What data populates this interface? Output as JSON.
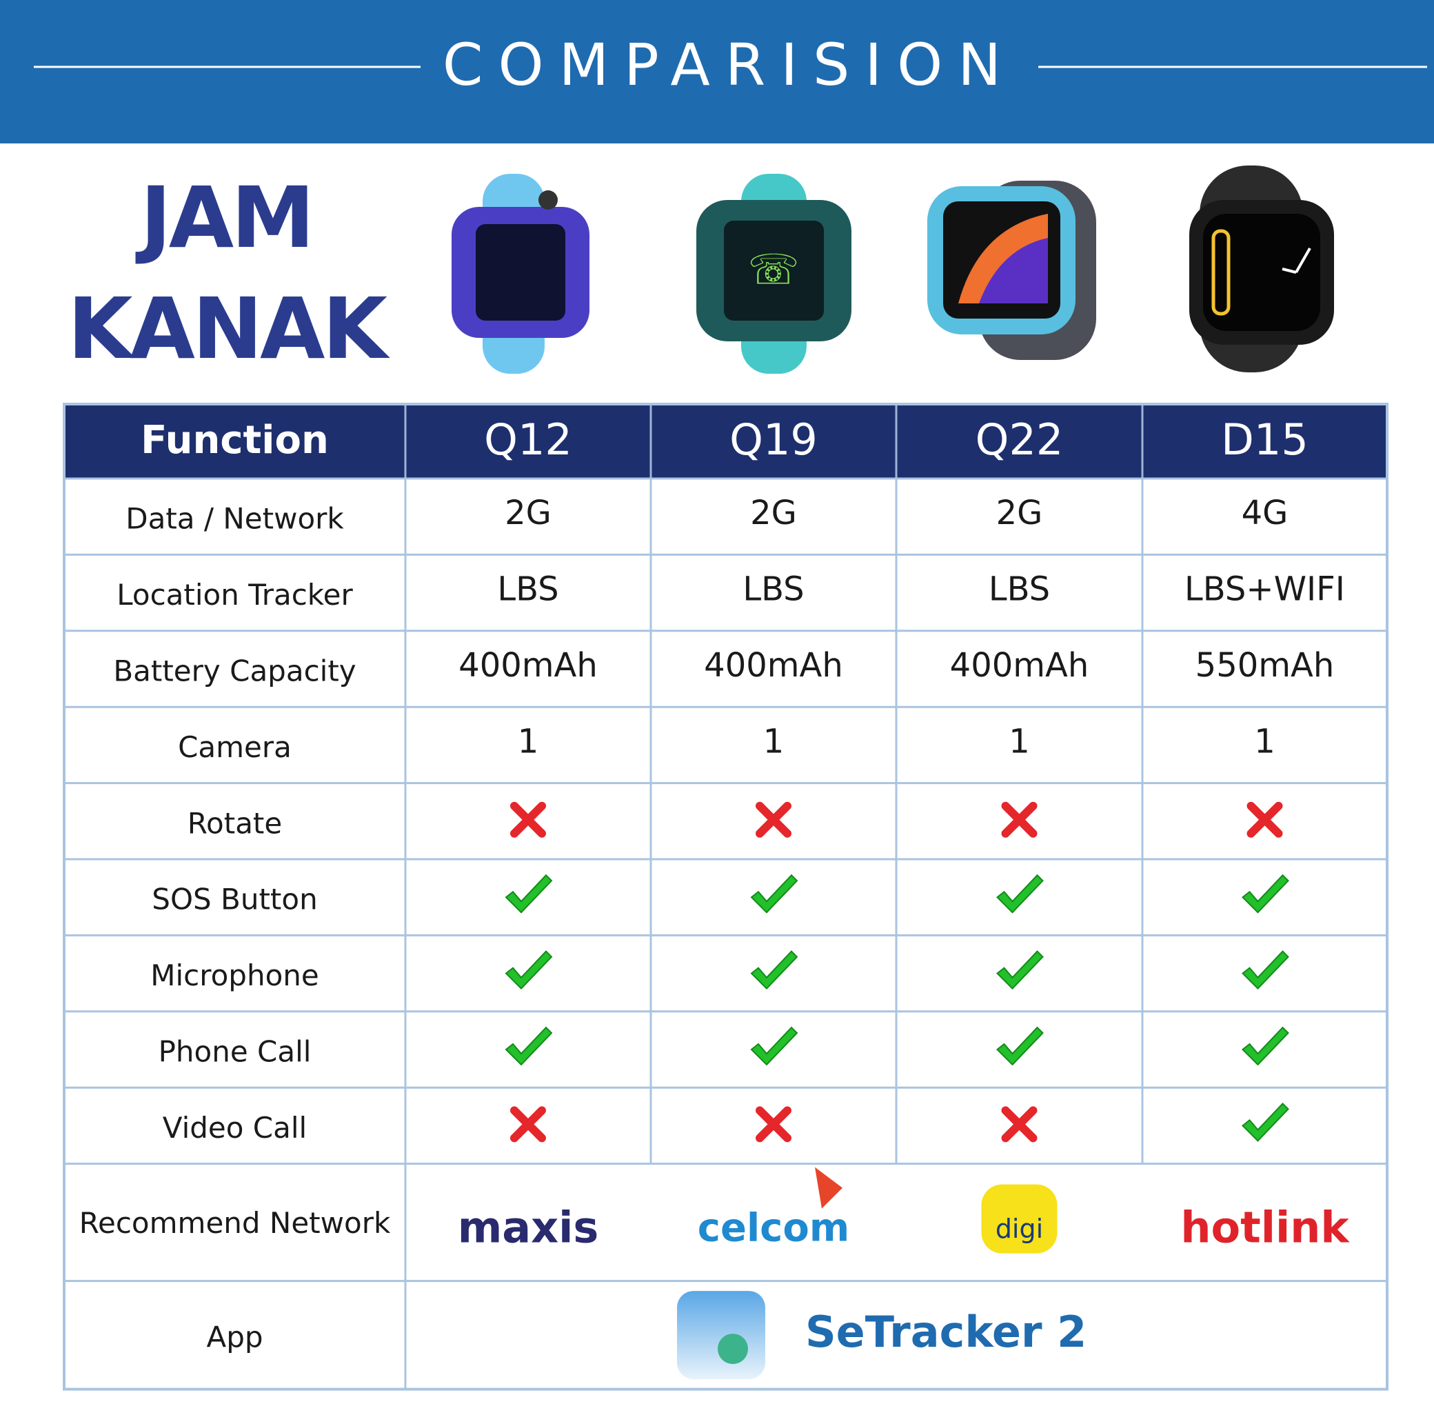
{
  "header": {
    "title": "COMPARISION"
  },
  "brand": {
    "line1": "JAM",
    "line2": "KANAK"
  },
  "table": {
    "columns": [
      "Function",
      "Q12",
      "Q19",
      "Q22",
      "D15"
    ],
    "rows": [
      {
        "label": "Data / Network",
        "cells": [
          "2G",
          "2G",
          "2G",
          "4G"
        ]
      },
      {
        "label": "Location Tracker",
        "cells": [
          "LBS",
          "LBS",
          "LBS",
          "LBS+WIFI"
        ]
      },
      {
        "label": "Battery Capacity",
        "cells": [
          "400mAh",
          "400mAh",
          "400mAh",
          "550mAh"
        ]
      },
      {
        "label": "Camera",
        "cells": [
          "1",
          "1",
          "1",
          "1"
        ]
      },
      {
        "label": "Rotate",
        "cells": [
          false,
          false,
          false,
          false
        ]
      },
      {
        "label": "SOS Button",
        "cells": [
          true,
          true,
          true,
          true
        ]
      },
      {
        "label": "Microphone",
        "cells": [
          true,
          true,
          true,
          true
        ]
      },
      {
        "label": "Phone Call",
        "cells": [
          true,
          true,
          true,
          true
        ]
      },
      {
        "label": "Video Call",
        "cells": [
          false,
          false,
          false,
          true
        ]
      }
    ],
    "network": {
      "label": "Recommend Network",
      "logos": [
        "maxis",
        "celcom",
        "digi",
        "hotlink"
      ]
    },
    "app": {
      "label": "App",
      "name": "SeTracker 2"
    }
  }
}
